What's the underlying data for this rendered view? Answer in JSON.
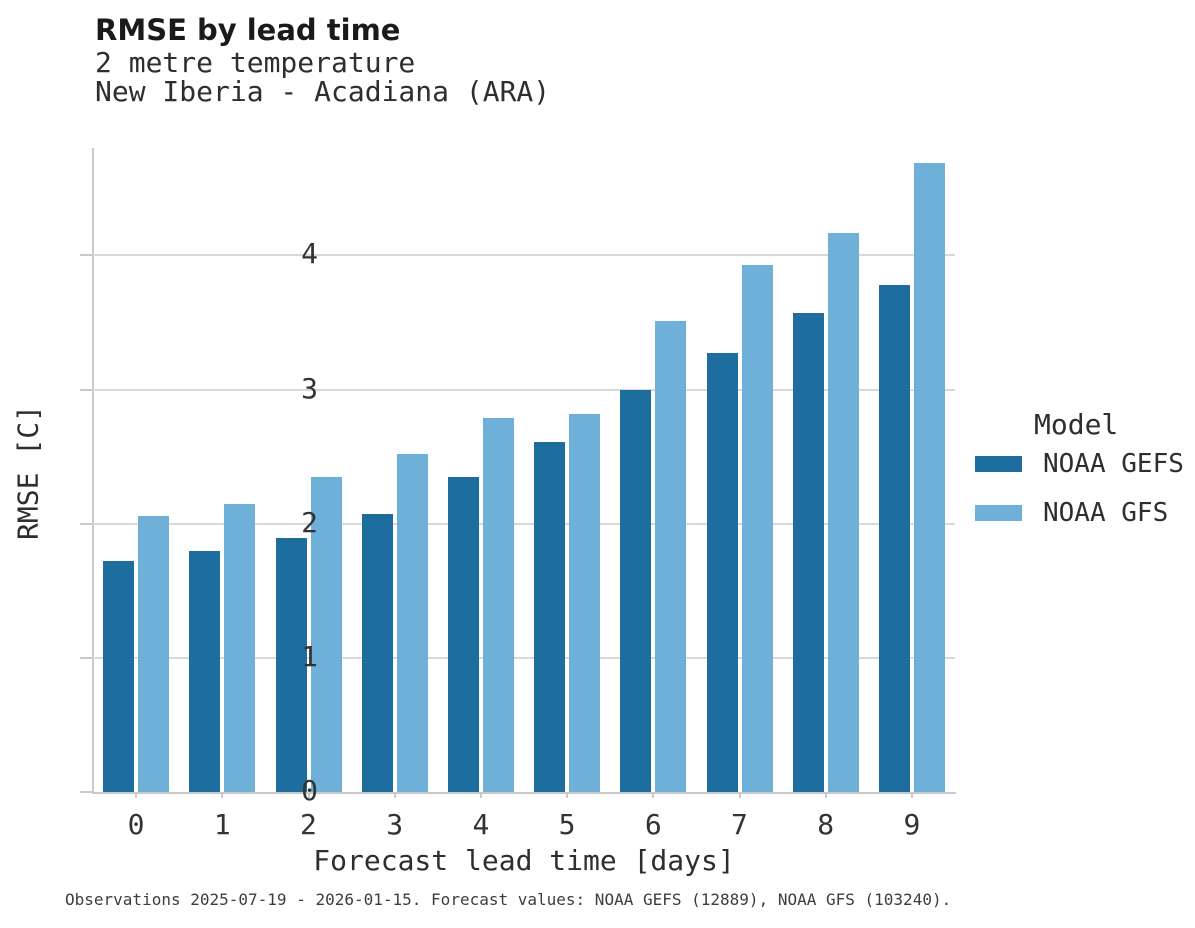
{
  "header": {
    "title": "RMSE by lead time",
    "subtitle1": "2 metre temperature",
    "subtitle2": "New Iberia - Acadiana (ARA)"
  },
  "legend": {
    "title": "Model",
    "items": [
      {
        "label": "NOAA GEFS",
        "color": "#1d6e9e"
      },
      {
        "label": "NOAA GFS",
        "color": "#6fb0d8"
      }
    ]
  },
  "caption": "Observations 2025-07-19 - 2026-01-15. Forecast values: NOAA GEFS (12889), NOAA GFS (103240).",
  "chart_data": {
    "type": "bar",
    "title": "RMSE by lead time",
    "subtitle": [
      "2 metre temperature",
      "New Iberia - Acadiana (ARA)"
    ],
    "categories": [
      "0",
      "1",
      "2",
      "3",
      "4",
      "5",
      "6",
      "7",
      "8",
      "9"
    ],
    "series": [
      {
        "name": "NOAA GEFS",
        "color": "#1d6e9e",
        "values": [
          1.72,
          1.8,
          1.89,
          2.07,
          2.35,
          2.61,
          3.0,
          3.27,
          3.57,
          3.78
        ]
      },
      {
        "name": "NOAA GFS",
        "color": "#6fb0d8",
        "values": [
          2.06,
          2.15,
          2.35,
          2.52,
          2.79,
          2.82,
          3.51,
          3.93,
          4.17,
          4.69
        ]
      }
    ],
    "xlabel": "Forecast lead time [days]",
    "ylabel": "RMSE [C]",
    "ylim": [
      0,
      4.8
    ],
    "yticks": [
      0,
      1,
      2,
      3,
      4
    ],
    "grid": "horizontal",
    "legend_position": "right",
    "caption": "Observations 2025-07-19 - 2026-01-15. Forecast values: NOAA GEFS (12889), NOAA GFS (103240)."
  }
}
